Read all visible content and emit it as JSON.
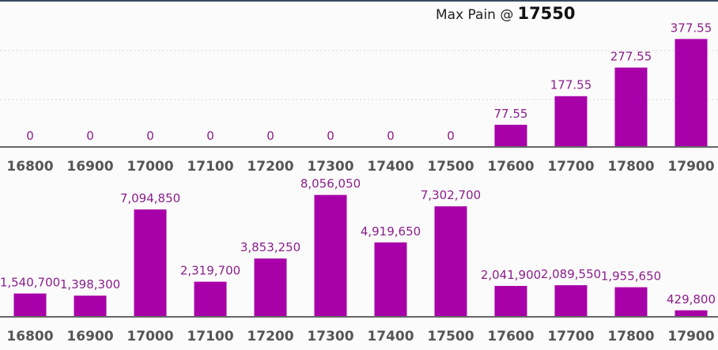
{
  "header": {
    "title_label": "Max Pain @",
    "title_value": "17550"
  },
  "chart_data": [
    {
      "type": "bar",
      "categories": [
        "16800",
        "16900",
        "17000",
        "17100",
        "17200",
        "17300",
        "17400",
        "17500",
        "17600",
        "17700",
        "17800",
        "17900"
      ],
      "values": [
        0,
        0,
        0,
        0,
        0,
        0,
        0,
        0,
        77.55,
        177.55,
        277.55,
        377.55
      ],
      "labels": [
        "0",
        "0",
        "0",
        "0",
        "0",
        "0",
        "0",
        "0",
        "77.55",
        "177.55",
        "277.55",
        "377.55"
      ],
      "ylim": [
        0,
        420
      ],
      "grid": true,
      "color": "#a800a8"
    },
    {
      "type": "bar",
      "categories": [
        "16800",
        "16900",
        "17000",
        "17100",
        "17200",
        "17300",
        "17400",
        "17500",
        "17600",
        "17700",
        "17800",
        "17900"
      ],
      "values": [
        1540700,
        1398300,
        7094850,
        2319700,
        3853250,
        8056050,
        4919650,
        7302700,
        2041900,
        2089550,
        1955650,
        429800
      ],
      "labels": [
        "1,540,700",
        "1,398,300",
        "7,094,850",
        "2,319,700",
        "3,853,250",
        "8,056,050",
        "4,919,650",
        "7,302,700",
        "2,041,900",
        "2,089,550",
        "1,955,650",
        "429,800"
      ],
      "ylim": [
        0,
        9400000
      ],
      "grid": false,
      "color": "#a800a8"
    }
  ]
}
